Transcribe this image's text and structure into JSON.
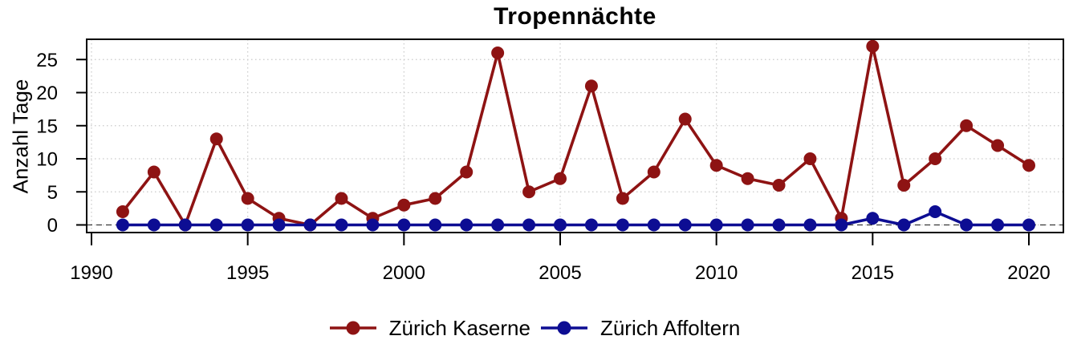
{
  "chart_data": {
    "type": "line",
    "title": "Tropennächte",
    "xlabel": "",
    "ylabel": "Anzahl Tage",
    "x": [
      1991,
      1992,
      1993,
      1994,
      1995,
      1996,
      1997,
      1998,
      1999,
      2000,
      2001,
      2002,
      2003,
      2004,
      2005,
      2006,
      2007,
      2008,
      2009,
      2010,
      2011,
      2012,
      2013,
      2014,
      2015,
      2016,
      2017,
      2018,
      2019,
      2020
    ],
    "series": [
      {
        "name": "Zürich Kaserne",
        "color": "#8E1313",
        "values": [
          2,
          8,
          0,
          13,
          4,
          1,
          0,
          4,
          1,
          3,
          4,
          8,
          26,
          5,
          7,
          21,
          4,
          8,
          16,
          9,
          7,
          6,
          10,
          1,
          27,
          6,
          10,
          15,
          12,
          9
        ]
      },
      {
        "name": "Zürich Affoltern",
        "color": "#0D0D93",
        "values": [
          0,
          0,
          0,
          0,
          0,
          0,
          0,
          0,
          0,
          0,
          0,
          0,
          0,
          0,
          0,
          0,
          0,
          0,
          0,
          0,
          0,
          0,
          0,
          0,
          1,
          0,
          2,
          0,
          0,
          0
        ]
      }
    ],
    "x_ticks": [
      1990,
      1995,
      2000,
      2005,
      2010,
      2015,
      2020
    ],
    "y_ticks": [
      0,
      5,
      10,
      15,
      20,
      25
    ],
    "xlim": [
      1989.85,
      2020.8
    ],
    "ylim": [
      -1.15,
      28.1
    ],
    "grid": "dotted",
    "grid_color": "#c9c9c9",
    "zero_line_style": "dashed",
    "zero_line_color": "#3a3a3a",
    "frame_color": "#000000",
    "marker": "filled-circle",
    "legend_position": "bottom-center"
  }
}
